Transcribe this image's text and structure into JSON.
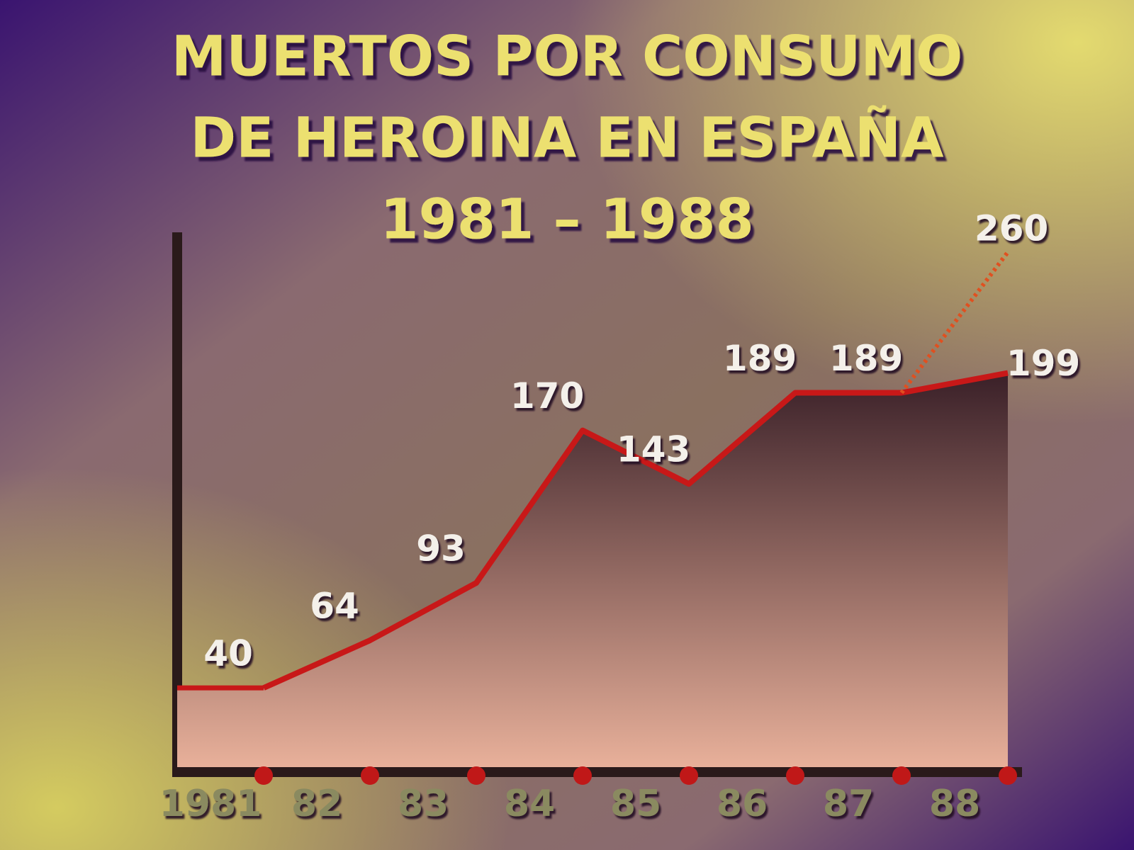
{
  "chart_data": {
    "type": "line",
    "title": [
      "MUERTOS POR CONSUMO",
      "DE HEROINA EN ESPAÑA",
      "1981 – 1988"
    ],
    "categories": [
      "1981",
      "82",
      "83",
      "84",
      "85",
      "86",
      "87",
      "88"
    ],
    "series": [
      {
        "color": "#c81818",
        "dashed": false,
        "values": [
          40,
          64,
          93,
          170,
          143,
          189,
          189,
          199
        ]
      },
      {
        "color": "#e05020",
        "dashed": true,
        "values": [
          null,
          null,
          null,
          null,
          null,
          null,
          189,
          260
        ]
      }
    ],
    "ylim": [
      0,
      270
    ]
  }
}
